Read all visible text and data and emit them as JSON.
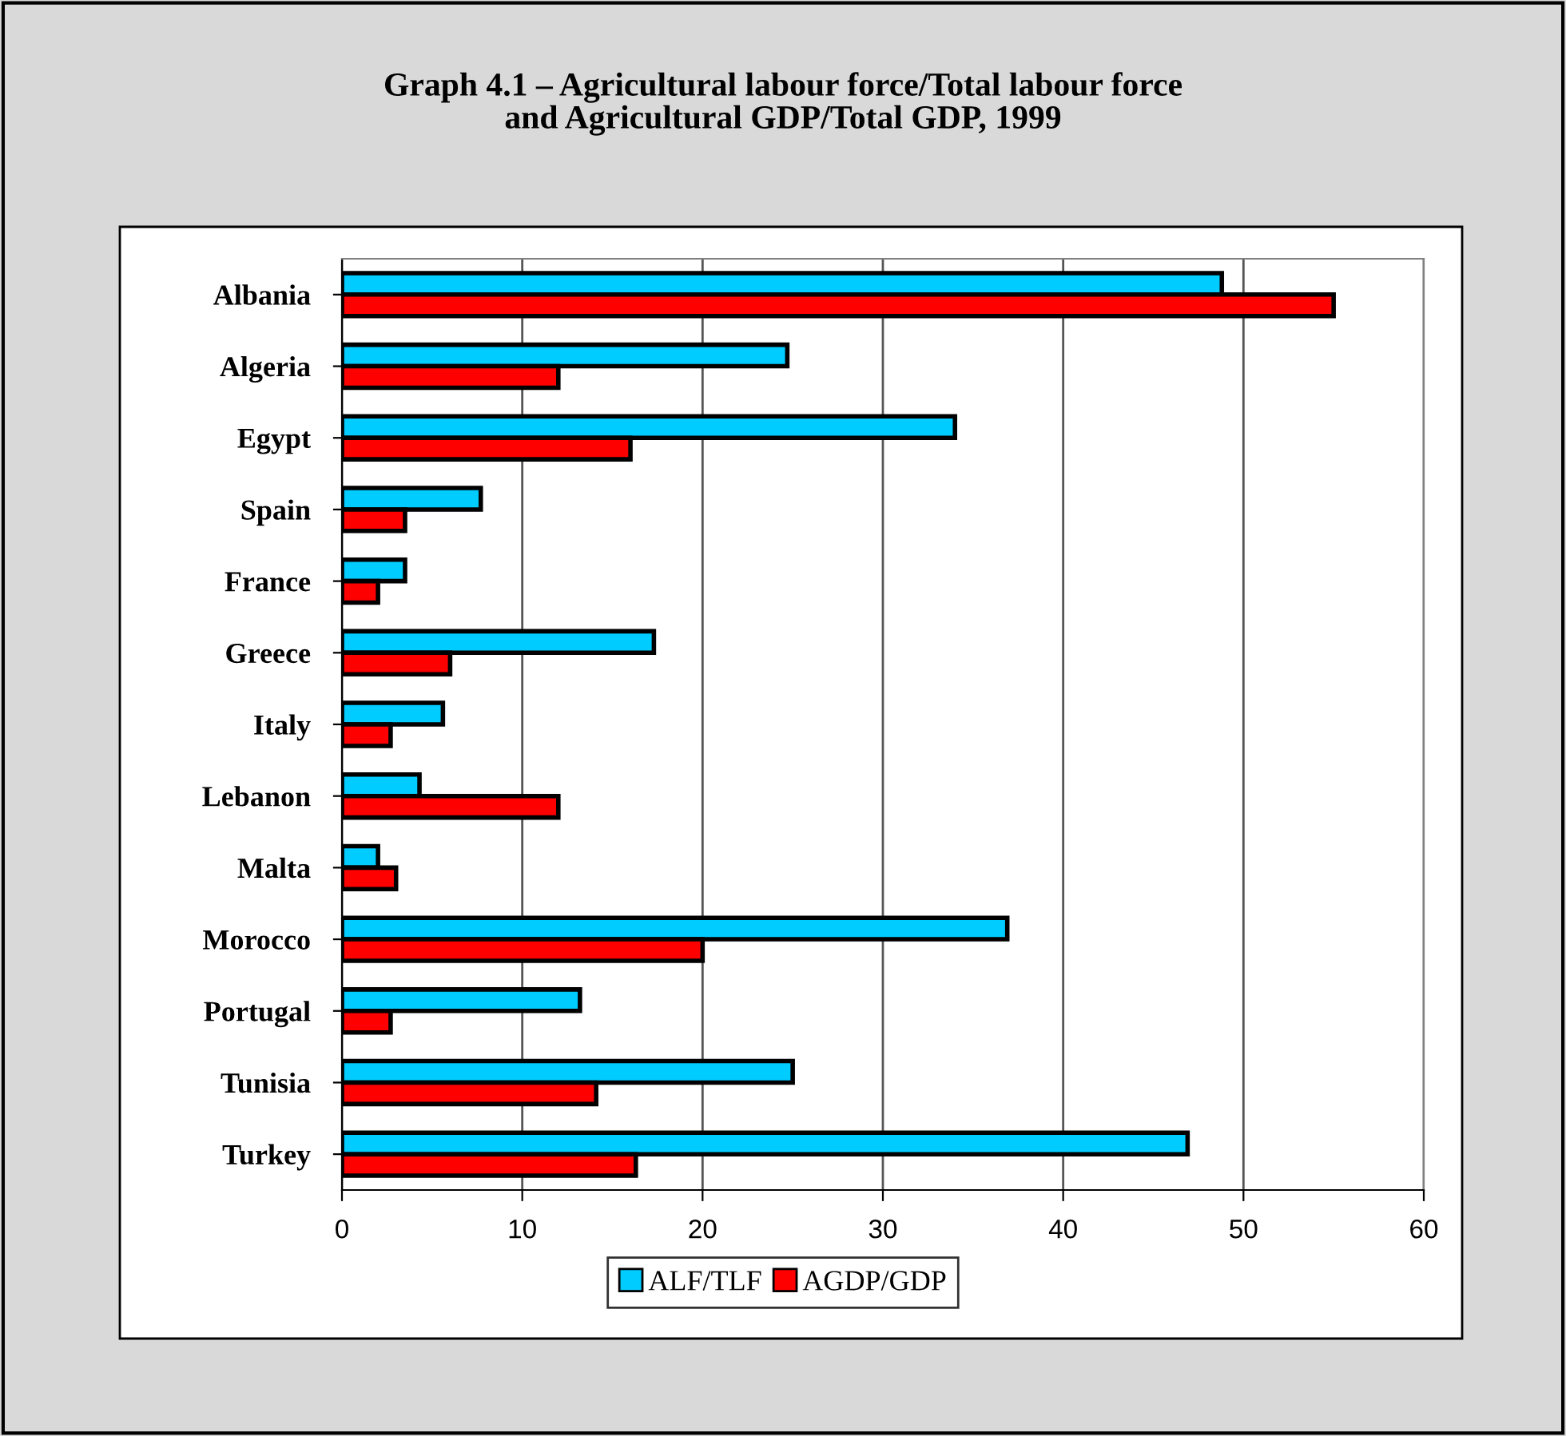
{
  "chart_data": {
    "type": "bar",
    "orientation": "horizontal",
    "title": "Graph 4.1 – Agricultural labour force/Total labour force\nand Agricultural GDP/Total GDP, 1999",
    "categories": [
      "Albania",
      "Algeria",
      "Egypt",
      "Spain",
      "France",
      "Greece",
      "Italy",
      "Lebanon",
      "Malta",
      "Morocco",
      "Portugal",
      "Tunisia",
      "Turkey"
    ],
    "series": [
      {
        "name": "ALF/TLF",
        "color": "#00ccff",
        "values": [
          48.8,
          24.7,
          34.0,
          7.7,
          3.5,
          17.3,
          5.6,
          4.3,
          2.0,
          36.9,
          13.2,
          25.0,
          46.9
        ]
      },
      {
        "name": "AGDP/GDP",
        "color": "#ff0000",
        "values": [
          55.0,
          12.0,
          16.0,
          3.5,
          2.0,
          6.0,
          2.7,
          12.0,
          3.0,
          20.0,
          2.7,
          14.1,
          16.3
        ]
      }
    ],
    "xlim": [
      0,
      60
    ],
    "xticks": [
      0,
      10,
      20,
      30,
      40,
      50,
      60
    ],
    "grid": "x",
    "legend": "bottom"
  }
}
